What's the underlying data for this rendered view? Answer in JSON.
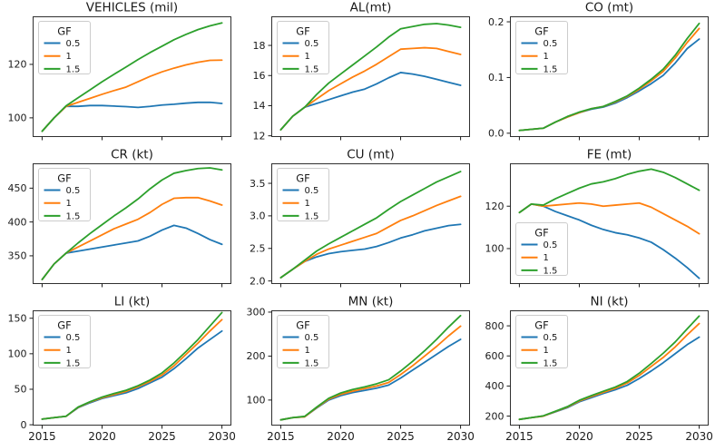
{
  "app": {
    "kind": "matplotlib-figure",
    "background": "#ffffff"
  },
  "legend": {
    "title": "GF",
    "labels": [
      "0.5",
      "1",
      "1.5"
    ]
  },
  "colors": {
    "gf_05": "#1f77b4",
    "gf_1": "#ff7f0e",
    "gf_15": "#2ca02c"
  },
  "x_years": [
    2015,
    2016,
    2017,
    2018,
    2019,
    2020,
    2021,
    2022,
    2023,
    2024,
    2025,
    2026,
    2027,
    2028,
    2029,
    2030
  ],
  "xticks": [
    {
      "v": 2015,
      "label": "2015"
    },
    {
      "v": 2020,
      "label": "2020"
    },
    {
      "v": 2025,
      "label": "2025"
    },
    {
      "v": 2030,
      "label": "2030"
    }
  ],
  "xlim": [
    2014.25,
    2030.75
  ],
  "chart_data": [
    {
      "type": "line",
      "title": "VEHICLES (mil)",
      "ylim": [
        93,
        137.8
      ],
      "yticks": [
        {
          "v": 100,
          "label": "100"
        },
        {
          "v": 120,
          "label": "120"
        }
      ],
      "show_xtick_labels": false,
      "legend_position": "upper-left",
      "series": [
        {
          "name": "0.5",
          "color": "#1f77b4",
          "values": [
            95,
            100,
            104.3,
            104.3,
            104.6,
            104.6,
            104.4,
            104.2,
            103.9,
            104.3,
            104.8,
            105.1,
            105.5,
            105.8,
            105.8,
            105.4
          ]
        },
        {
          "name": "1",
          "color": "#ff7f0e",
          "values": [
            95,
            100,
            104.3,
            105.8,
            107.3,
            108.8,
            110.2,
            111.5,
            113.5,
            115.5,
            117.2,
            118.6,
            119.8,
            120.8,
            121.5,
            121.6
          ]
        },
        {
          "name": "1.5",
          "color": "#2ca02c",
          "values": [
            95,
            100,
            104.5,
            107.5,
            110.5,
            113.5,
            116.3,
            119,
            121.8,
            124.4,
            126.8,
            129.2,
            131.2,
            133,
            134.4,
            135.5
          ]
        }
      ]
    },
    {
      "type": "line",
      "title": "AL(mt)",
      "ylim": [
        11.95,
        19.9
      ],
      "yticks": [
        {
          "v": 12,
          "label": "12"
        },
        {
          "v": 14,
          "label": "14"
        },
        {
          "v": 16,
          "label": "16"
        },
        {
          "v": 18,
          "label": "18"
        }
      ],
      "show_xtick_labels": false,
      "legend_position": "upper-left",
      "series": [
        {
          "name": "0.5",
          "color": "#1f77b4",
          "values": [
            12.4,
            13.3,
            13.9,
            14.15,
            14.4,
            14.65,
            14.9,
            15.1,
            15.45,
            15.85,
            16.2,
            16.1,
            15.95,
            15.75,
            15.55,
            15.35
          ]
        },
        {
          "name": "1",
          "color": "#ff7f0e",
          "values": [
            12.4,
            13.3,
            13.9,
            14.45,
            15.0,
            15.45,
            15.9,
            16.3,
            16.75,
            17.25,
            17.75,
            17.8,
            17.85,
            17.8,
            17.6,
            17.4
          ]
        },
        {
          "name": "1.5",
          "color": "#2ca02c",
          "values": [
            12.4,
            13.3,
            13.9,
            14.75,
            15.5,
            16.1,
            16.7,
            17.3,
            17.9,
            18.55,
            19.1,
            19.25,
            19.4,
            19.45,
            19.35,
            19.2
          ]
        }
      ]
    },
    {
      "type": "line",
      "title": "CO (mt)",
      "ylim": [
        -0.006,
        0.209
      ],
      "yticks": [
        {
          "v": 0.0,
          "label": "0.0"
        },
        {
          "v": 0.1,
          "label": "0.1"
        },
        {
          "v": 0.2,
          "label": "0.2"
        }
      ],
      "show_xtick_labels": false,
      "legend_position": "upper-left",
      "series": [
        {
          "name": "0.5",
          "color": "#1f77b4",
          "values": [
            0.005,
            0.007,
            0.009,
            0.02,
            0.029,
            0.037,
            0.043,
            0.047,
            0.054,
            0.064,
            0.076,
            0.089,
            0.104,
            0.126,
            0.152,
            0.169
          ]
        },
        {
          "name": "1",
          "color": "#ff7f0e",
          "values": [
            0.005,
            0.007,
            0.009,
            0.02,
            0.029,
            0.037,
            0.044,
            0.048,
            0.056,
            0.066,
            0.079,
            0.094,
            0.111,
            0.135,
            0.163,
            0.188
          ]
        },
        {
          "name": "1.5",
          "color": "#2ca02c",
          "values": [
            0.005,
            0.007,
            0.009,
            0.02,
            0.03,
            0.038,
            0.044,
            0.048,
            0.057,
            0.067,
            0.081,
            0.097,
            0.115,
            0.14,
            0.17,
            0.197
          ]
        }
      ]
    },
    {
      "type": "line",
      "title": "CR (kt)",
      "ylim": [
        309,
        486
      ],
      "yticks": [
        {
          "v": 350,
          "label": "350"
        },
        {
          "v": 400,
          "label": "400"
        },
        {
          "v": 450,
          "label": "450"
        }
      ],
      "show_xtick_labels": false,
      "legend_position": "upper-left",
      "series": [
        {
          "name": "0.5",
          "color": "#1f77b4",
          "values": [
            315,
            338,
            354,
            357,
            360,
            363,
            366,
            369,
            372,
            379,
            388,
            395,
            391,
            383,
            374,
            367
          ]
        },
        {
          "name": "1",
          "color": "#ff7f0e",
          "values": [
            315,
            338,
            354,
            363,
            372,
            381,
            390,
            397,
            404,
            414,
            426,
            435,
            436,
            436,
            431,
            425
          ]
        },
        {
          "name": "1.5",
          "color": "#2ca02c",
          "values": [
            315,
            338,
            354,
            369,
            383,
            396,
            409,
            421,
            434,
            449,
            462,
            472,
            476,
            479,
            480,
            477
          ]
        }
      ]
    },
    {
      "type": "line",
      "title": "CU (mt)",
      "ylim": [
        1.96,
        3.8
      ],
      "yticks": [
        {
          "v": 2.0,
          "label": "2.0"
        },
        {
          "v": 2.5,
          "label": "2.5"
        },
        {
          "v": 3.0,
          "label": "3.0"
        },
        {
          "v": 3.5,
          "label": "3.5"
        }
      ],
      "show_xtick_labels": false,
      "legend_position": "upper-left",
      "series": [
        {
          "name": "0.5",
          "color": "#1f77b4",
          "values": [
            2.05,
            2.18,
            2.3,
            2.37,
            2.42,
            2.45,
            2.47,
            2.49,
            2.53,
            2.59,
            2.66,
            2.71,
            2.77,
            2.81,
            2.85,
            2.87
          ]
        },
        {
          "name": "1",
          "color": "#ff7f0e",
          "values": [
            2.05,
            2.18,
            2.3,
            2.41,
            2.49,
            2.55,
            2.61,
            2.67,
            2.73,
            2.83,
            2.93,
            3.0,
            3.08,
            3.16,
            3.23,
            3.3
          ]
        },
        {
          "name": "1.5",
          "color": "#2ca02c",
          "values": [
            2.05,
            2.18,
            2.32,
            2.46,
            2.57,
            2.67,
            2.77,
            2.87,
            2.97,
            3.1,
            3.22,
            3.32,
            3.42,
            3.52,
            3.6,
            3.68
          ]
        }
      ]
    },
    {
      "type": "line",
      "title": "FE (mt)",
      "ylim": [
        83.5,
        140
      ],
      "yticks": [
        {
          "v": 100,
          "label": "100"
        },
        {
          "v": 120,
          "label": "120"
        }
      ],
      "show_xtick_labels": false,
      "legend_position": "lower-left",
      "series": [
        {
          "name": "0.5",
          "color": "#1f77b4",
          "values": [
            117,
            121,
            120,
            117.5,
            115.5,
            113.5,
            111,
            109,
            107.5,
            106.5,
            105,
            103,
            99.5,
            95.5,
            91,
            86
          ]
        },
        {
          "name": "1",
          "color": "#ff7f0e",
          "values": [
            117,
            121,
            120,
            120.5,
            121,
            121.5,
            121,
            120,
            120.5,
            121,
            121.5,
            119.5,
            116.5,
            113.5,
            110.5,
            107
          ]
        },
        {
          "name": "1.5",
          "color": "#2ca02c",
          "values": [
            117,
            121,
            120.5,
            123.5,
            126,
            128.5,
            130.5,
            131.5,
            133,
            135,
            136.5,
            137.5,
            136,
            133.5,
            130.5,
            127.5
          ]
        }
      ]
    },
    {
      "type": "line",
      "title": "LI (kt)",
      "ylim": [
        -0.5,
        160.5
      ],
      "yticks": [
        {
          "v": 0,
          "label": "0"
        },
        {
          "v": 50,
          "label": "50"
        },
        {
          "v": 100,
          "label": "100"
        },
        {
          "v": 150,
          "label": "150"
        }
      ],
      "show_xtick_labels": true,
      "legend_position": "upper-left",
      "series": [
        {
          "name": "0.5",
          "color": "#1f77b4",
          "values": [
            8,
            10,
            12,
            24,
            31,
            37,
            41,
            45,
            51,
            59,
            67,
            79,
            93,
            108,
            120,
            132
          ]
        },
        {
          "name": "1",
          "color": "#ff7f0e",
          "values": [
            8,
            10,
            12,
            24.5,
            32,
            38,
            42.5,
            47,
            53.5,
            61,
            70,
            83,
            99,
            115,
            132,
            148
          ]
        },
        {
          "name": "1.5",
          "color": "#2ca02c",
          "values": [
            8,
            10,
            12,
            25,
            32.5,
            39,
            44,
            48.5,
            55,
            63,
            73,
            87,
            103,
            120,
            139,
            158
          ]
        }
      ]
    },
    {
      "type": "line",
      "title": "MN (kt)",
      "ylim": [
        43,
        303
      ],
      "yticks": [
        {
          "v": 100,
          "label": "100"
        },
        {
          "v": 200,
          "label": "200"
        },
        {
          "v": 300,
          "label": "300"
        }
      ],
      "show_xtick_labels": true,
      "legend_position": "upper-left",
      "series": [
        {
          "name": "0.5",
          "color": "#1f77b4",
          "values": [
            55,
            60,
            62,
            82,
            100,
            110,
            117,
            122,
            127,
            134,
            150,
            168,
            186,
            204,
            222,
            238
          ]
        },
        {
          "name": "1",
          "color": "#ff7f0e",
          "values": [
            55,
            60,
            62,
            83,
            102,
            113,
            120,
            126,
            132,
            140,
            158,
            178,
            200,
            222,
            246,
            268
          ]
        },
        {
          "name": "1.5",
          "color": "#2ca02c",
          "values": [
            55,
            60,
            63,
            84,
            104,
            116,
            124,
            130,
            137,
            146,
            166,
            188,
            212,
            238,
            266,
            292
          ]
        }
      ]
    },
    {
      "type": "line",
      "title": "NI (kt)",
      "ylim": [
        140,
        900
      ],
      "yticks": [
        {
          "v": 200,
          "label": "200"
        },
        {
          "v": 400,
          "label": "400"
        },
        {
          "v": 600,
          "label": "600"
        },
        {
          "v": 800,
          "label": "800"
        }
      ],
      "show_xtick_labels": true,
      "legend_position": "upper-left",
      "series": [
        {
          "name": "0.5",
          "color": "#1f77b4",
          "values": [
            178,
            190,
            200,
            228,
            256,
            295,
            322,
            350,
            375,
            405,
            450,
            500,
            555,
            615,
            675,
            725
          ]
        },
        {
          "name": "1",
          "color": "#ff7f0e",
          "values": [
            178,
            190,
            200,
            230,
            260,
            300,
            330,
            358,
            385,
            420,
            470,
            530,
            590,
            660,
            740,
            815
          ]
        },
        {
          "name": "1.5",
          "color": "#2ca02c",
          "values": [
            178,
            190,
            202,
            232,
            263,
            305,
            336,
            365,
            393,
            430,
            485,
            550,
            618,
            693,
            780,
            865
          ]
        }
      ]
    }
  ]
}
